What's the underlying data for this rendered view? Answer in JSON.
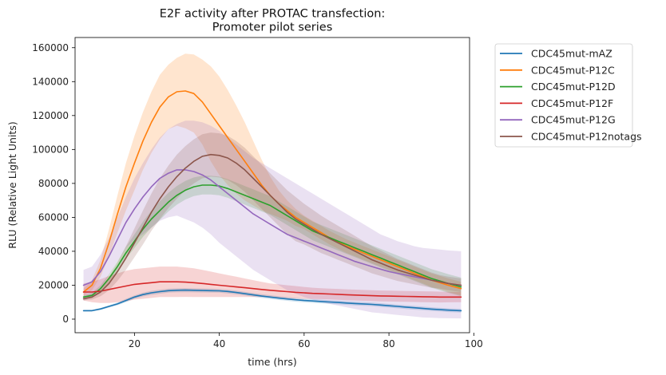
{
  "chart_data": {
    "type": "line",
    "title": "E2F activity after PROTAC transfection:",
    "subtitle": "Promoter pilot series",
    "xlabel": "time (hrs)",
    "ylabel": "RLU (Relative Light Units)",
    "xlim": [
      6,
      99
    ],
    "ylim": [
      -8000,
      166000
    ],
    "xticks": [
      20,
      40,
      60,
      80,
      100
    ],
    "yticks": [
      0,
      20000,
      40000,
      60000,
      80000,
      100000,
      120000,
      140000,
      160000
    ],
    "grid": false,
    "legend_position": "outside-top-right",
    "x": [
      8,
      10,
      12,
      14,
      16,
      18,
      20,
      22,
      24,
      26,
      28,
      30,
      32,
      34,
      36,
      38,
      40,
      42,
      44,
      46,
      48,
      50,
      52,
      54,
      56,
      58,
      60,
      62,
      64,
      66,
      68,
      70,
      72,
      74,
      76,
      78,
      80,
      82,
      84,
      86,
      88,
      90,
      92,
      94,
      97
    ],
    "series": [
      {
        "name": "CDC45mut-mAZ",
        "color": "#1f77b4",
        "values": [
          5000,
          5000,
          6000,
          7500,
          9000,
          11000,
          13000,
          14500,
          15500,
          16200,
          16800,
          17000,
          17100,
          17000,
          16900,
          16800,
          16700,
          16300,
          15700,
          15000,
          14300,
          13600,
          13000,
          12400,
          11900,
          11400,
          11000,
          10700,
          10400,
          10100,
          9800,
          9500,
          9200,
          9000,
          8700,
          8300,
          7900,
          7500,
          7100,
          6700,
          6300,
          5900,
          5600,
          5300,
          5000
        ],
        "upper": [
          5500,
          5500,
          6600,
          8200,
          9800,
          12000,
          14000,
          15600,
          16700,
          17400,
          18000,
          18200,
          18300,
          18200,
          18100,
          18000,
          17800,
          17400,
          16800,
          16100,
          15400,
          14700,
          14100,
          13500,
          13000,
          12500,
          12100,
          11800,
          11500,
          11200,
          10900,
          10600,
          10300,
          10100,
          9800,
          9400,
          9000,
          8600,
          8200,
          7800,
          7400,
          7000,
          6700,
          6400,
          6100
        ],
        "lower": [
          4500,
          4500,
          5400,
          6800,
          8200,
          10000,
          12000,
          13400,
          14300,
          15000,
          15600,
          15800,
          15900,
          15800,
          15700,
          15600,
          15600,
          15200,
          14600,
          13900,
          13200,
          12500,
          11900,
          11300,
          10800,
          10300,
          9900,
          9600,
          9300,
          9000,
          8700,
          8400,
          8100,
          7900,
          7600,
          7200,
          6800,
          6400,
          6000,
          5600,
          5200,
          4800,
          4500,
          4200,
          3900
        ]
      },
      {
        "name": "CDC45mut-P12C",
        "color": "#ff7f0e",
        "values": [
          16000,
          20000,
          30000,
          45000,
          62000,
          78000,
          92000,
          105000,
          116000,
          125000,
          131000,
          134000,
          134500,
          133000,
          128000,
          121000,
          114000,
          107000,
          100000,
          93000,
          86000,
          79000,
          73000,
          68000,
          64000,
          60000,
          57000,
          54000,
          51000,
          48000,
          45500,
          43000,
          41000,
          39000,
          37000,
          35000,
          33000,
          31000,
          29000,
          27000,
          25000,
          23000,
          21500,
          20000,
          18000
        ],
        "upper": [
          18000,
          23000,
          35000,
          53000,
          73000,
          92000,
          108000,
          122000,
          134000,
          144000,
          150000,
          154000,
          156500,
          156000,
          153000,
          149000,
          143000,
          135000,
          126000,
          116000,
          105000,
          94000,
          84000,
          76000,
          70000,
          65000,
          61000,
          58000,
          55000,
          52000,
          49500,
          47000,
          45000,
          43000,
          41000,
          39000,
          37000,
          35000,
          33000,
          31000,
          29000,
          27000,
          25500,
          24000,
          22000
        ],
        "lower": [
          14000,
          17000,
          25000,
          37000,
          51000,
          64000,
          76000,
          88000,
          98000,
          106000,
          112000,
          114000,
          112500,
          110000,
          103000,
          93000,
          85000,
          79000,
          74000,
          70000,
          67000,
          64000,
          62000,
          60000,
          58000,
          55000,
          53000,
          50000,
          47000,
          44000,
          41500,
          39000,
          37000,
          35000,
          33000,
          31000,
          29000,
          27000,
          25000,
          23000,
          21000,
          19000,
          17500,
          16000,
          14000
        ]
      },
      {
        "name": "CDC45mut-P12D",
        "color": "#2ca02c",
        "values": [
          13000,
          14000,
          18000,
          24000,
          31000,
          39000,
          46000,
          53000,
          59000,
          64000,
          69000,
          73000,
          76000,
          78000,
          79000,
          79000,
          78500,
          77000,
          75000,
          73000,
          71000,
          69000,
          67000,
          64000,
          61000,
          58000,
          55000,
          52000,
          50000,
          48000,
          46000,
          44000,
          42000,
          40000,
          38000,
          36000,
          34000,
          32000,
          30000,
          28000,
          26000,
          24000,
          22500,
          21000,
          19000
        ],
        "upper": [
          14000,
          15500,
          20000,
          26500,
          34000,
          42500,
          50000,
          57500,
          64000,
          69500,
          74500,
          78500,
          81500,
          83500,
          84500,
          84500,
          84000,
          82500,
          80500,
          78500,
          76500,
          74500,
          72500,
          69500,
          66500,
          63500,
          60500,
          57500,
          55500,
          53500,
          51500,
          49500,
          47500,
          45500,
          43500,
          41500,
          39500,
          37500,
          35500,
          33500,
          31500,
          29500,
          28000,
          26500,
          24500
        ],
        "lower": [
          12000,
          12500,
          16000,
          21500,
          28000,
          35500,
          42000,
          48500,
          54000,
          58500,
          63500,
          67500,
          70500,
          72500,
          73500,
          73500,
          73000,
          71500,
          69500,
          67500,
          65500,
          63500,
          61500,
          58500,
          55500,
          52500,
          49500,
          46500,
          44500,
          42500,
          40500,
          38500,
          36500,
          34500,
          32500,
          30500,
          28500,
          26500,
          24500,
          22500,
          20500,
          18500,
          17000,
          15500,
          13500
        ]
      },
      {
        "name": "CDC45mut-P12F",
        "color": "#d62728",
        "values": [
          16000,
          16000,
          16500,
          17500,
          18500,
          19500,
          20500,
          21000,
          21500,
          22000,
          22000,
          22000,
          21800,
          21500,
          21000,
          20500,
          20000,
          19500,
          19000,
          18500,
          18000,
          17500,
          17000,
          16600,
          16200,
          15800,
          15500,
          15200,
          15000,
          14800,
          14600,
          14400,
          14200,
          14000,
          13800,
          13700,
          13600,
          13500,
          13400,
          13300,
          13200,
          13100,
          13000,
          13000,
          13000
        ],
        "upper": [
          21000,
          22000,
          23500,
          25500,
          27000,
          28500,
          29500,
          30000,
          30500,
          31000,
          31000,
          31000,
          30500,
          30000,
          29000,
          28000,
          27000,
          26000,
          25000,
          24000,
          23000,
          22000,
          21000,
          20500,
          20000,
          19500,
          19000,
          18500,
          18200,
          18000,
          17800,
          17600,
          17400,
          17200,
          17000,
          16900,
          16800,
          16700,
          16600,
          16500,
          16400,
          16300,
          16200,
          16100,
          16000
        ],
        "lower": [
          11000,
          10000,
          9500,
          9500,
          10000,
          10500,
          11500,
          12000,
          12500,
          13000,
          13000,
          13000,
          13100,
          13000,
          13000,
          13000,
          13000,
          13000,
          13000,
          13000,
          13000,
          13000,
          13000,
          12700,
          12400,
          12100,
          12000,
          11900,
          11800,
          11600,
          11400,
          11200,
          11000,
          10800,
          10600,
          10500,
          10400,
          10300,
          10200,
          10100,
          10000,
          9900,
          9800,
          9900,
          10000
        ]
      },
      {
        "name": "CDC45mut-P12G",
        "color": "#9467bd",
        "values": [
          20000,
          22000,
          28000,
          37000,
          47000,
          57000,
          65000,
          72000,
          78000,
          83000,
          86000,
          88000,
          88000,
          87000,
          85000,
          82000,
          78000,
          74000,
          70000,
          66000,
          62000,
          59000,
          56000,
          53000,
          50000,
          48000,
          46000,
          44000,
          42000,
          40000,
          38000,
          36000,
          34000,
          32500,
          31000,
          29500,
          28000,
          27000,
          26000,
          25000,
          24000,
          23000,
          22000,
          21000,
          20000
        ],
        "upper": [
          29000,
          31000,
          38000,
          48000,
          60000,
          72000,
          83000,
          92000,
          100000,
          107000,
          112000,
          115000,
          117000,
          117000,
          116000,
          114000,
          111000,
          107000,
          103000,
          99000,
          95000,
          92000,
          89000,
          86000,
          83000,
          80000,
          77000,
          74000,
          71000,
          68000,
          65000,
          62000,
          59000,
          56000,
          53000,
          50000,
          48000,
          46000,
          44500,
          43000,
          42000,
          41500,
          41000,
          40500,
          40000
        ],
        "lower": [
          11000,
          13000,
          18000,
          26000,
          34000,
          42000,
          47000,
          50000,
          54000,
          58000,
          60000,
          61000,
          59000,
          57000,
          54000,
          50000,
          45000,
          41000,
          37000,
          33000,
          29000,
          26000,
          23000,
          20000,
          17000,
          15000,
          13000,
          11500,
          10000,
          9000,
          8000,
          7000,
          6000,
          5000,
          4000,
          3500,
          3000,
          2500,
          2000,
          1500,
          1000,
          800,
          600,
          500,
          400
        ]
      },
      {
        "name": "CDC45mut-P12notags",
        "color": "#8c564b",
        "values": [
          12000,
          13000,
          16000,
          21000,
          28000,
          36000,
          45000,
          54000,
          63000,
          71000,
          78000,
          84000,
          89000,
          93000,
          96000,
          97000,
          96500,
          95000,
          92000,
          88000,
          83000,
          78000,
          73000,
          68000,
          63000,
          59000,
          56000,
          53000,
          50000,
          47500,
          45000,
          42500,
          40000,
          37500,
          35000,
          33000,
          31000,
          29000,
          27500,
          26000,
          24500,
          23000,
          22000,
          21000,
          20000
        ],
        "upper": [
          13000,
          14500,
          18500,
          25000,
          33500,
          43000,
          53500,
          64000,
          74000,
          83000,
          90500,
          97000,
          102000,
          106000,
          109000,
          110000,
          109500,
          108000,
          105000,
          101000,
          96000,
          91000,
          86000,
          81000,
          76000,
          72000,
          68000,
          64500,
          61000,
          58000,
          55000,
          52000,
          49000,
          46000,
          43000,
          40500,
          38000,
          35500,
          33500,
          31500,
          29500,
          27500,
          26000,
          25000,
          24000
        ],
        "lower": [
          11000,
          11500,
          13500,
          17000,
          22500,
          29000,
          36500,
          44000,
          52000,
          59000,
          65500,
          71000,
          76000,
          80000,
          83000,
          84000,
          83500,
          82000,
          79000,
          75000,
          70000,
          65000,
          60000,
          55000,
          50000,
          46000,
          44000,
          41500,
          39000,
          37000,
          35000,
          33000,
          31000,
          29000,
          27000,
          25500,
          24000,
          22500,
          21500,
          20500,
          19500,
          18500,
          18000,
          17000,
          16000
        ]
      }
    ]
  }
}
